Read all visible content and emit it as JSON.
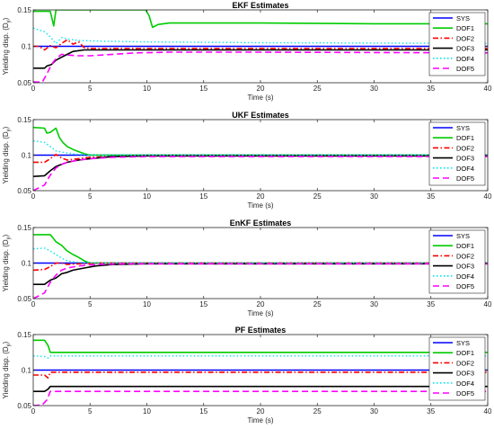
{
  "figure": {
    "shared": {
      "xlabel": "Time (s)",
      "ylabel": "Yielding disp. (D",
      "ylabel_sub": "y",
      "ylabel_close": ")",
      "xticks": [
        "0",
        "5",
        "10",
        "15",
        "20",
        "25",
        "30",
        "35",
        "40"
      ],
      "yticks": [
        "0.05",
        "0.1",
        "0.15"
      ],
      "legend": [
        "SYS",
        "DOF1",
        "DOF2",
        "DOF3",
        "DOF4",
        "DOF5"
      ],
      "legend_colors": [
        "#0000ff",
        "#00cc00",
        "#ff0000",
        "#000000",
        "#00e5ee",
        "#ff00ff"
      ]
    }
  },
  "chart_data": [
    {
      "type": "line",
      "title": "EKF Estimates",
      "xlim": [
        0,
        40
      ],
      "ylim": [
        0.05,
        0.15
      ],
      "series": [
        {
          "name": "SYS",
          "style": "solid",
          "color": "#0000ff",
          "points": [
            [
              0,
              0.1
            ],
            [
              40,
              0.1
            ]
          ]
        },
        {
          "name": "DOF1",
          "style": "solid",
          "color": "#00cc00",
          "points": [
            [
              0,
              0.148
            ],
            [
              1.5,
              0.148
            ],
            [
              1.8,
              0.128
            ],
            [
              2.0,
              0.15
            ],
            [
              9.9,
              0.15
            ],
            [
              10.2,
              0.142
            ],
            [
              10.5,
              0.126
            ],
            [
              11,
              0.13
            ],
            [
              12,
              0.132
            ],
            [
              15,
              0.132
            ],
            [
              20,
              0.132
            ],
            [
              30,
              0.131
            ],
            [
              40,
              0.131
            ]
          ]
        },
        {
          "name": "DOF2",
          "style": "dashdot",
          "color": "#ff0000",
          "points": [
            [
              0,
              0.1
            ],
            [
              0.5,
              0.1
            ],
            [
              1.0,
              0.095
            ],
            [
              1.5,
              0.101
            ],
            [
              2.0,
              0.098
            ],
            [
              2.5,
              0.104
            ],
            [
              3.0,
              0.109
            ],
            [
              3.5,
              0.103
            ],
            [
              4.0,
              0.106
            ],
            [
              4.5,
              0.098
            ],
            [
              5.0,
              0.097
            ],
            [
              7,
              0.097
            ],
            [
              10,
              0.097
            ],
            [
              20,
              0.097
            ],
            [
              40,
              0.097
            ]
          ]
        },
        {
          "name": "DOF3",
          "style": "solid",
          "color": "#000000",
          "points": [
            [
              0,
              0.07
            ],
            [
              1.0,
              0.07
            ],
            [
              1.2,
              0.073
            ],
            [
              1.6,
              0.075
            ],
            [
              2.0,
              0.081
            ],
            [
              2.5,
              0.085
            ],
            [
              3.0,
              0.089
            ],
            [
              3.5,
              0.093
            ],
            [
              4.5,
              0.095
            ],
            [
              6,
              0.095
            ],
            [
              10,
              0.095
            ],
            [
              40,
              0.095
            ]
          ]
        },
        {
          "name": "DOF4",
          "style": "dotted",
          "color": "#00e5ee",
          "points": [
            [
              0,
              0.125
            ],
            [
              1.0,
              0.12
            ],
            [
              1.5,
              0.113
            ],
            [
              2.0,
              0.104
            ],
            [
              2.5,
              0.112
            ],
            [
              3.0,
              0.11
            ],
            [
              4,
              0.108
            ],
            [
              6,
              0.107
            ],
            [
              10,
              0.106
            ],
            [
              20,
              0.105
            ],
            [
              40,
              0.104
            ]
          ]
        },
        {
          "name": "DOF5",
          "style": "dashed",
          "color": "#ff00ff",
          "points": [
            [
              0,
              0.051
            ],
            [
              0.8,
              0.051
            ],
            [
              1.2,
              0.062
            ],
            [
              1.6,
              0.075
            ],
            [
              2.0,
              0.083
            ],
            [
              2.5,
              0.089
            ],
            [
              3.0,
              0.088
            ],
            [
              4.0,
              0.087
            ],
            [
              5,
              0.087
            ],
            [
              7,
              0.089
            ],
            [
              9,
              0.091
            ],
            [
              12,
              0.092
            ],
            [
              20,
              0.092
            ],
            [
              40,
              0.091
            ]
          ]
        }
      ]
    },
    {
      "type": "line",
      "title": "UKF Estimates",
      "xlim": [
        0,
        40
      ],
      "ylim": [
        0.05,
        0.15
      ],
      "series": [
        {
          "name": "SYS",
          "style": "solid",
          "color": "#0000ff",
          "points": [
            [
              0,
              0.1
            ],
            [
              40,
              0.1
            ]
          ]
        },
        {
          "name": "DOF1",
          "style": "solid",
          "color": "#00cc00",
          "points": [
            [
              0,
              0.139
            ],
            [
              1.0,
              0.138
            ],
            [
              1.2,
              0.131
            ],
            [
              1.5,
              0.132
            ],
            [
              2.0,
              0.138
            ],
            [
              2.3,
              0.125
            ],
            [
              2.6,
              0.118
            ],
            [
              3.0,
              0.112
            ],
            [
              3.5,
              0.108
            ],
            [
              4.0,
              0.105
            ],
            [
              4.5,
              0.102
            ],
            [
              5,
              0.1
            ],
            [
              8,
              0.1
            ],
            [
              40,
              0.1
            ]
          ]
        },
        {
          "name": "DOF2",
          "style": "dashdot",
          "color": "#ff0000",
          "points": [
            [
              0,
              0.09
            ],
            [
              1.0,
              0.09
            ],
            [
              1.5,
              0.095
            ],
            [
              2.0,
              0.101
            ],
            [
              2.5,
              0.096
            ],
            [
              3.0,
              0.093
            ],
            [
              4,
              0.095
            ],
            [
              5,
              0.097
            ],
            [
              7,
              0.098
            ],
            [
              10,
              0.099
            ],
            [
              40,
              0.099
            ]
          ]
        },
        {
          "name": "DOF3",
          "style": "solid",
          "color": "#000000",
          "points": [
            [
              0,
              0.07
            ],
            [
              1.0,
              0.071
            ],
            [
              1.5,
              0.078
            ],
            [
              2.0,
              0.084
            ],
            [
              2.5,
              0.087
            ],
            [
              3.0,
              0.09
            ],
            [
              4.0,
              0.093
            ],
            [
              5.0,
              0.095
            ],
            [
              7,
              0.098
            ],
            [
              10,
              0.099
            ],
            [
              40,
              0.099
            ]
          ]
        },
        {
          "name": "DOF4",
          "style": "dotted",
          "color": "#00e5ee",
          "points": [
            [
              0,
              0.12
            ],
            [
              1.0,
              0.118
            ],
            [
              1.5,
              0.112
            ],
            [
              2.0,
              0.106
            ],
            [
              3.0,
              0.103
            ],
            [
              4,
              0.101
            ],
            [
              6,
              0.1
            ],
            [
              40,
              0.1
            ]
          ]
        },
        {
          "name": "DOF5",
          "style": "dashed",
          "color": "#ff00ff",
          "points": [
            [
              0,
              0.05
            ],
            [
              1.0,
              0.058
            ],
            [
              1.5,
              0.072
            ],
            [
              2.0,
              0.082
            ],
            [
              2.5,
              0.087
            ],
            [
              3.0,
              0.09
            ],
            [
              4.0,
              0.093
            ],
            [
              5.0,
              0.095
            ],
            [
              7,
              0.097
            ],
            [
              10,
              0.098
            ],
            [
              40,
              0.098
            ]
          ]
        }
      ]
    },
    {
      "type": "line",
      "title": "EnKF Estimates",
      "xlim": [
        0,
        40
      ],
      "ylim": [
        0.05,
        0.15
      ],
      "series": [
        {
          "name": "SYS",
          "style": "solid",
          "color": "#0000ff",
          "points": [
            [
              0,
              0.1
            ],
            [
              40,
              0.1
            ]
          ]
        },
        {
          "name": "DOF1",
          "style": "solid",
          "color": "#00cc00",
          "points": [
            [
              0,
              0.14
            ],
            [
              1.5,
              0.14
            ],
            [
              1.8,
              0.134
            ],
            [
              2.0,
              0.13
            ],
            [
              2.5,
              0.125
            ],
            [
              3.0,
              0.117
            ],
            [
              3.5,
              0.112
            ],
            [
              4.0,
              0.108
            ],
            [
              4.5,
              0.103
            ],
            [
              5,
              0.1
            ],
            [
              8,
              0.1
            ],
            [
              40,
              0.1
            ]
          ]
        },
        {
          "name": "DOF2",
          "style": "dashdot",
          "color": "#ff0000",
          "points": [
            [
              0,
              0.09
            ],
            [
              1.0,
              0.091
            ],
            [
              1.5,
              0.095
            ],
            [
              2.0,
              0.1
            ],
            [
              2.5,
              0.1
            ],
            [
              3.0,
              0.098
            ],
            [
              4,
              0.099
            ],
            [
              6,
              0.1
            ],
            [
              40,
              0.1
            ]
          ]
        },
        {
          "name": "DOF3",
          "style": "solid",
          "color": "#000000",
          "points": [
            [
              0,
              0.07
            ],
            [
              1.0,
              0.07
            ],
            [
              1.5,
              0.076
            ],
            [
              2.0,
              0.079
            ],
            [
              2.5,
              0.085
            ],
            [
              3.0,
              0.087
            ],
            [
              3.5,
              0.09
            ],
            [
              4.5,
              0.093
            ],
            [
              5.5,
              0.096
            ],
            [
              7,
              0.098
            ],
            [
              10,
              0.099
            ],
            [
              40,
              0.099
            ]
          ]
        },
        {
          "name": "DOF4",
          "style": "dotted",
          "color": "#00e5ee",
          "points": [
            [
              0,
              0.12
            ],
            [
              1.0,
              0.121
            ],
            [
              1.5,
              0.117
            ],
            [
              2.0,
              0.112
            ],
            [
              2.5,
              0.107
            ],
            [
              3.0,
              0.103
            ],
            [
              4,
              0.101
            ],
            [
              6,
              0.1
            ],
            [
              40,
              0.1
            ]
          ]
        },
        {
          "name": "DOF5",
          "style": "dashed",
          "color": "#ff00ff",
          "points": [
            [
              0,
              0.05
            ],
            [
              1.0,
              0.058
            ],
            [
              1.5,
              0.073
            ],
            [
              2.0,
              0.083
            ],
            [
              2.5,
              0.09
            ],
            [
              3.0,
              0.093
            ],
            [
              4.0,
              0.096
            ],
            [
              5.5,
              0.098
            ],
            [
              8,
              0.099
            ],
            [
              40,
              0.099
            ]
          ]
        }
      ]
    },
    {
      "type": "line",
      "title": "PF Estimates",
      "xlim": [
        0,
        40
      ],
      "ylim": [
        0.05,
        0.15
      ],
      "series": [
        {
          "name": "SYS",
          "style": "solid",
          "color": "#0000ff",
          "points": [
            [
              0,
              0.1
            ],
            [
              40,
              0.1
            ]
          ]
        },
        {
          "name": "DOF1",
          "style": "solid",
          "color": "#00cc00",
          "points": [
            [
              0,
              0.142
            ],
            [
              1.0,
              0.142
            ],
            [
              1.3,
              0.135
            ],
            [
              1.5,
              0.125
            ],
            [
              5,
              0.125
            ],
            [
              20,
              0.125
            ],
            [
              40,
              0.125
            ]
          ]
        },
        {
          "name": "DOF2",
          "style": "dashdot",
          "color": "#ff0000",
          "points": [
            [
              0,
              0.093
            ],
            [
              1.0,
              0.093
            ],
            [
              1.3,
              0.089
            ],
            [
              1.5,
              0.097
            ],
            [
              10,
              0.097
            ],
            [
              40,
              0.097
            ]
          ]
        },
        {
          "name": "DOF3",
          "style": "solid",
          "color": "#000000",
          "points": [
            [
              0,
              0.07
            ],
            [
              1.0,
              0.07
            ],
            [
              1.3,
              0.073
            ],
            [
              1.5,
              0.077
            ],
            [
              10,
              0.077
            ],
            [
              40,
              0.077
            ]
          ]
        },
        {
          "name": "DOF4",
          "style": "dotted",
          "color": "#00e5ee",
          "points": [
            [
              0,
              0.12
            ],
            [
              1.0,
              0.119
            ],
            [
              1.3,
              0.117
            ],
            [
              1.5,
              0.12
            ],
            [
              10,
              0.12
            ],
            [
              40,
              0.12
            ]
          ]
        },
        {
          "name": "DOF5",
          "style": "dashed",
          "color": "#ff00ff",
          "points": [
            [
              0,
              0.05
            ],
            [
              0.8,
              0.051
            ],
            [
              1.2,
              0.058
            ],
            [
              1.5,
              0.07
            ],
            [
              10,
              0.07
            ],
            [
              40,
              0.07
            ]
          ]
        }
      ]
    }
  ]
}
